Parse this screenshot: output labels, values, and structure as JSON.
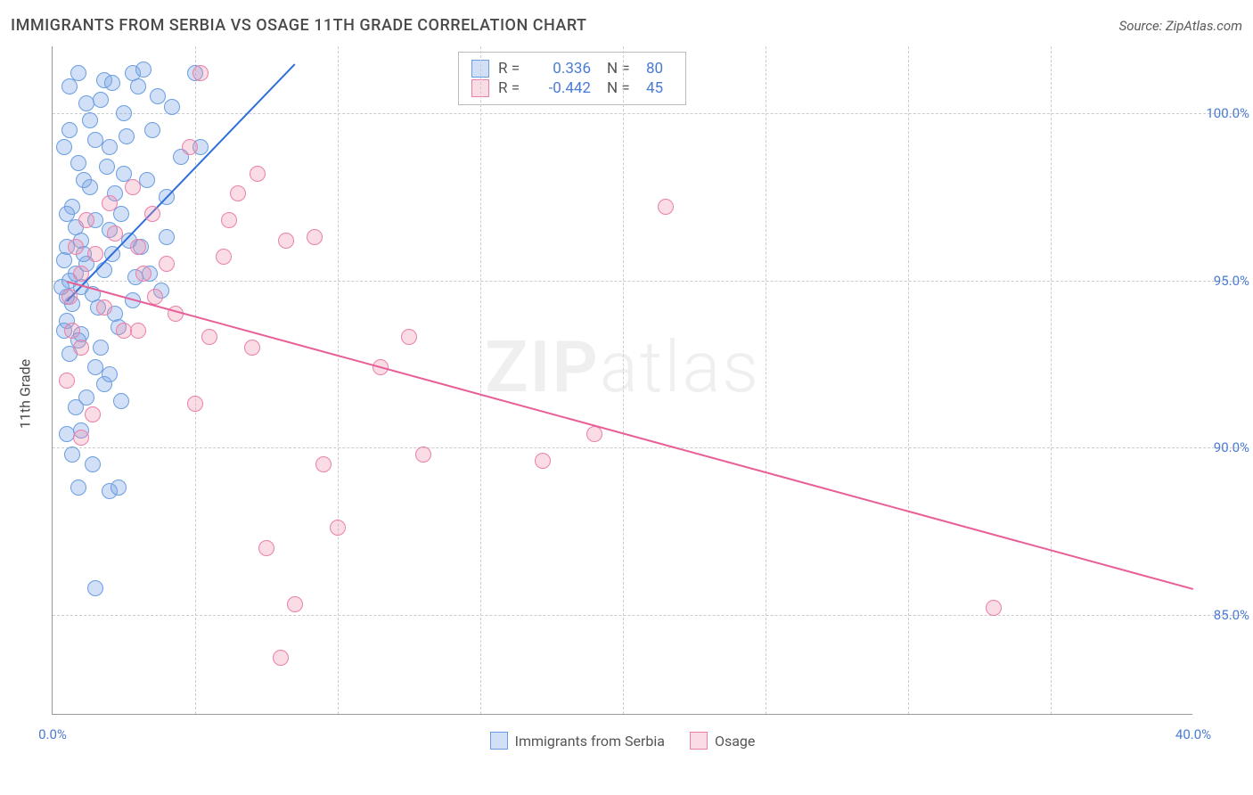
{
  "title": "IMMIGRANTS FROM SERBIA VS OSAGE 11TH GRADE CORRELATION CHART",
  "source": "Source: ZipAtlas.com",
  "ylabel": "11th Grade",
  "watermark_bold": "ZIP",
  "watermark_light": "atlas",
  "chart": {
    "type": "scatter",
    "xlim": [
      0,
      40
    ],
    "ylim": [
      82,
      102
    ],
    "xticks": [
      0,
      40
    ],
    "xtick_labels": [
      "0.0%",
      "40.0%"
    ],
    "xgrid": [
      5,
      10,
      15,
      20,
      25,
      30,
      35
    ],
    "yticks": [
      85,
      90,
      95,
      100
    ],
    "ytick_labels": [
      "85.0%",
      "90.0%",
      "95.0%",
      "100.0%"
    ],
    "background_color": "#ffffff",
    "grid_color": "#cccccc",
    "axis_color": "#999999",
    "series": [
      {
        "name": "Immigrants from Serbia",
        "color_fill": "rgba(122,167,230,0.35)",
        "color_stroke": "#6a9de0",
        "line_color": "#2f6fd9",
        "marker_size": 18,
        "R_label": "R =",
        "R": "0.336",
        "N_label": "N =",
        "N": "80",
        "trend": {
          "x1": 0.5,
          "y1": 94.4,
          "x2": 8.5,
          "y2": 101.5
        },
        "points": [
          [
            0.5,
            94.5
          ],
          [
            0.6,
            95.0
          ],
          [
            0.7,
            94.3
          ],
          [
            0.8,
            95.2
          ],
          [
            0.5,
            96.0
          ],
          [
            1.0,
            94.8
          ],
          [
            1.0,
            96.2
          ],
          [
            1.2,
            95.5
          ],
          [
            1.4,
            94.6
          ],
          [
            1.5,
            96.8
          ],
          [
            0.7,
            97.2
          ],
          [
            1.8,
            95.3
          ],
          [
            1.3,
            97.8
          ],
          [
            2.0,
            96.5
          ],
          [
            2.2,
            94.0
          ],
          [
            2.4,
            97.0
          ],
          [
            0.9,
            98.5
          ],
          [
            1.5,
            99.2
          ],
          [
            2.0,
            99.0
          ],
          [
            2.5,
            100.0
          ],
          [
            2.8,
            101.2
          ],
          [
            3.0,
            100.8
          ],
          [
            3.2,
            101.3
          ],
          [
            1.8,
            101.0
          ],
          [
            1.2,
            100.3
          ],
          [
            0.6,
            99.5
          ],
          [
            2.5,
            98.2
          ],
          [
            3.3,
            98.0
          ],
          [
            3.5,
            99.5
          ],
          [
            4.0,
            97.5
          ],
          [
            4.0,
            96.3
          ],
          [
            4.5,
            98.7
          ],
          [
            5.0,
            101.2
          ],
          [
            5.2,
            99.0
          ],
          [
            3.8,
            94.7
          ],
          [
            2.3,
            93.6
          ],
          [
            1.0,
            93.4
          ],
          [
            1.5,
            92.4
          ],
          [
            0.6,
            92.8
          ],
          [
            1.8,
            91.9
          ],
          [
            2.0,
            92.2
          ],
          [
            0.8,
            91.2
          ],
          [
            1.2,
            91.5
          ],
          [
            2.4,
            91.4
          ],
          [
            0.5,
            90.4
          ],
          [
            1.0,
            90.5
          ],
          [
            0.7,
            89.8
          ],
          [
            1.4,
            89.5
          ],
          [
            0.9,
            88.8
          ],
          [
            2.0,
            88.7
          ],
          [
            2.3,
            88.8
          ],
          [
            1.5,
            85.8
          ],
          [
            0.5,
            93.8
          ],
          [
            0.9,
            93.2
          ],
          [
            1.7,
            93.0
          ],
          [
            2.1,
            95.8
          ],
          [
            2.7,
            96.2
          ],
          [
            2.9,
            95.1
          ],
          [
            1.1,
            98.0
          ],
          [
            1.9,
            98.4
          ],
          [
            2.6,
            99.3
          ],
          [
            3.7,
            100.5
          ],
          [
            4.2,
            100.2
          ],
          [
            0.4,
            95.6
          ],
          [
            0.3,
            94.8
          ],
          [
            0.4,
            93.5
          ],
          [
            0.5,
            97.0
          ],
          [
            0.8,
            96.6
          ],
          [
            1.1,
            95.8
          ],
          [
            1.6,
            94.2
          ],
          [
            2.2,
            97.6
          ],
          [
            2.8,
            94.4
          ],
          [
            3.1,
            96.0
          ],
          [
            3.4,
            95.2
          ],
          [
            1.3,
            99.8
          ],
          [
            1.7,
            100.4
          ],
          [
            2.1,
            100.9
          ],
          [
            0.6,
            100.8
          ],
          [
            0.4,
            99.0
          ],
          [
            0.9,
            101.2
          ]
        ]
      },
      {
        "name": "Osage",
        "color_fill": "rgba(240,140,170,0.30)",
        "color_stroke": "#ea7faa",
        "line_color": "#e85f97",
        "marker_size": 18,
        "R_label": "R =",
        "R": "-0.442",
        "N_label": "N =",
        "N": "45",
        "trend": {
          "x1": 0.5,
          "y1": 95.0,
          "x2": 40.0,
          "y2": 85.8
        },
        "points": [
          [
            0.6,
            94.5
          ],
          [
            1.0,
            95.2
          ],
          [
            1.5,
            95.8
          ],
          [
            1.0,
            93.0
          ],
          [
            1.8,
            94.2
          ],
          [
            2.2,
            96.4
          ],
          [
            2.5,
            93.5
          ],
          [
            3.0,
            96.0
          ],
          [
            3.2,
            95.2
          ],
          [
            3.5,
            97.0
          ],
          [
            4.0,
            95.5
          ],
          [
            4.3,
            94.0
          ],
          [
            5.0,
            91.3
          ],
          [
            5.2,
            101.2
          ],
          [
            5.5,
            93.3
          ],
          [
            6.0,
            95.7
          ],
          [
            6.5,
            97.6
          ],
          [
            7.0,
            93.0
          ],
          [
            7.2,
            98.2
          ],
          [
            7.5,
            87.0
          ],
          [
            8.0,
            83.7
          ],
          [
            8.2,
            96.2
          ],
          [
            8.5,
            85.3
          ],
          [
            9.2,
            96.3
          ],
          [
            9.5,
            89.5
          ],
          [
            10.0,
            87.6
          ],
          [
            11.5,
            92.4
          ],
          [
            12.5,
            93.3
          ],
          [
            13.0,
            89.8
          ],
          [
            17.2,
            89.6
          ],
          [
            19.0,
            90.4
          ],
          [
            21.5,
            97.2
          ],
          [
            33.0,
            85.2
          ],
          [
            4.8,
            99.0
          ],
          [
            2.0,
            97.3
          ],
          [
            1.2,
            96.8
          ],
          [
            0.8,
            96.0
          ],
          [
            0.5,
            92.0
          ],
          [
            1.4,
            91.0
          ],
          [
            1.0,
            90.3
          ],
          [
            0.7,
            93.5
          ],
          [
            2.8,
            97.8
          ],
          [
            3.6,
            94.5
          ],
          [
            6.2,
            96.8
          ],
          [
            3.0,
            93.5
          ]
        ]
      }
    ]
  },
  "bottom_legend": [
    "Immigrants from Serbia",
    "Osage"
  ]
}
